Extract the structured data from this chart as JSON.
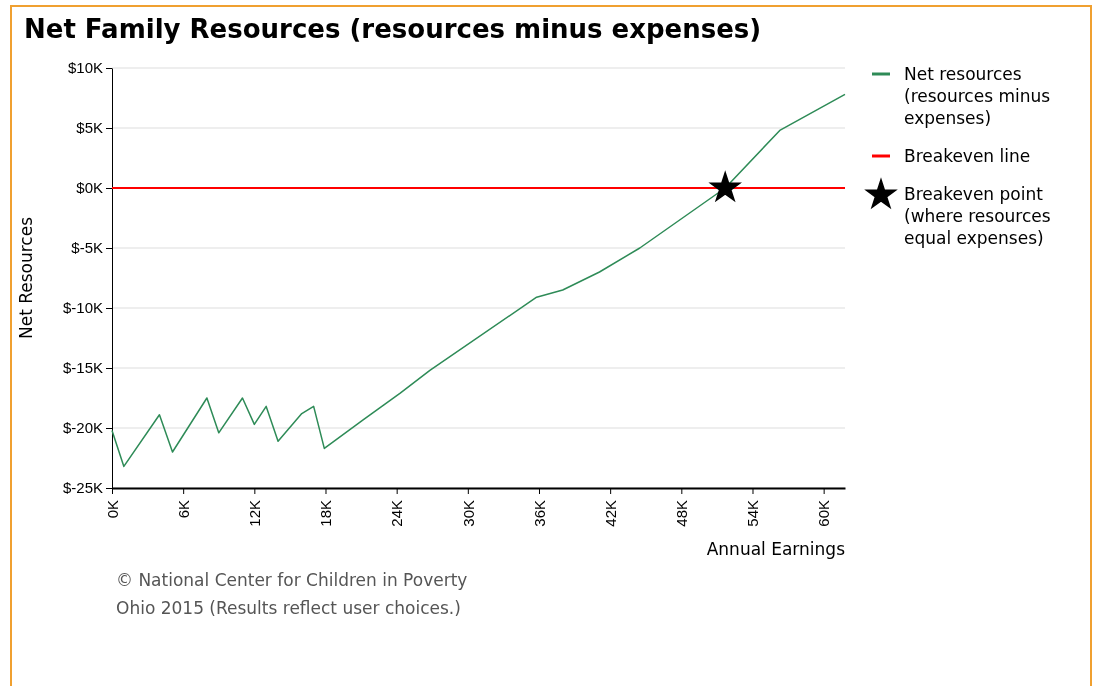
{
  "chart_data": {
    "type": "line",
    "title": "Net Family Resources (resources minus expenses)",
    "xlabel": "Annual Earnings",
    "ylabel": "Net Resources",
    "xlim": [
      0,
      61.8
    ],
    "ylim": [
      -25,
      10
    ],
    "xticks": [
      {
        "value": 0,
        "label": "0K"
      },
      {
        "value": 6,
        "label": "6K"
      },
      {
        "value": 12,
        "label": "12K"
      },
      {
        "value": 18,
        "label": "18K"
      },
      {
        "value": 24,
        "label": "24K"
      },
      {
        "value": 30,
        "label": "30K"
      },
      {
        "value": 36,
        "label": "36K"
      },
      {
        "value": 42,
        "label": "42K"
      },
      {
        "value": 48,
        "label": "48K"
      },
      {
        "value": 54,
        "label": "54K"
      },
      {
        "value": 60,
        "label": "60K"
      }
    ],
    "yticks": [
      {
        "value": -25,
        "label": "$-25K"
      },
      {
        "value": -20,
        "label": "$-20K"
      },
      {
        "value": -15,
        "label": "$-15K"
      },
      {
        "value": -10,
        "label": "$-10K"
      },
      {
        "value": -5,
        "label": "$-5K"
      },
      {
        "value": 0,
        "label": "$0K"
      },
      {
        "value": 5,
        "label": "$5K"
      },
      {
        "value": 10,
        "label": "$10K"
      }
    ],
    "grid": "y",
    "legend": "right",
    "series": [
      {
        "name": "Net resources (resources minus expenses)",
        "color": "#2e8b57",
        "x": [
          0,
          1,
          4,
          5.1,
          8,
          9,
          11,
          12,
          13,
          14,
          16,
          17,
          17.9,
          21.2,
          24.3,
          26.8,
          35.8,
          38,
          41.1,
          44.5,
          51.7,
          56.3,
          61.8
        ],
        "values": [
          -20.2,
          -23.2,
          -18.9,
          -22,
          -17.5,
          -20.4,
          -17.5,
          -19.7,
          -18.2,
          -21.1,
          -18.8,
          -18.2,
          -21.7,
          -19.3,
          -17.1,
          -15.2,
          -9.1,
          -8.5,
          -7,
          -5,
          0,
          4.8,
          7.8
        ]
      },
      {
        "type": "scatter",
        "name": "Breakeven point (where resources equal expenses)",
        "color": "#000000",
        "marker": "star",
        "x": [
          51.7
        ],
        "values": [
          0
        ]
      }
    ],
    "ref_lines": [
      {
        "axis": "y",
        "value": 0,
        "label": "Breakeven line",
        "color": "#ff0000"
      }
    ],
    "annotations": [
      "© National Center for Children in Poverty",
      "Ohio 2015 (Results reflect user choices.)"
    ]
  }
}
